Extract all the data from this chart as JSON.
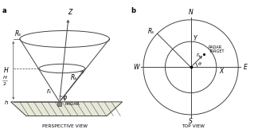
{
  "bg_color": "#ffffff",
  "line_color": "#444444",
  "title_a": "a",
  "title_b": "b",
  "label_perspective": "PERSPECTIVE VIEW",
  "label_top": "TOP VIEW",
  "label_Z": "Z",
  "label_H": "H",
  "label_h": "h",
  "label_Rs_left": "Rₛ",
  "label_Rs_mid": "Rₛ",
  "label_rs_a": "rₛ",
  "label_phi": "φ",
  "label_RADAR": "RADAR",
  "label_N": "N",
  "label_S": "S",
  "label_E": "E",
  "label_W": "W",
  "label_X": "X",
  "label_Y": "Y",
  "label_theta": "θ",
  "label_rs_b": "rₛ",
  "label_Rs_b": "Rₛ",
  "label_RADARTARGET_1": "RADAR",
  "label_RADARTARGET_2": "TARGET"
}
